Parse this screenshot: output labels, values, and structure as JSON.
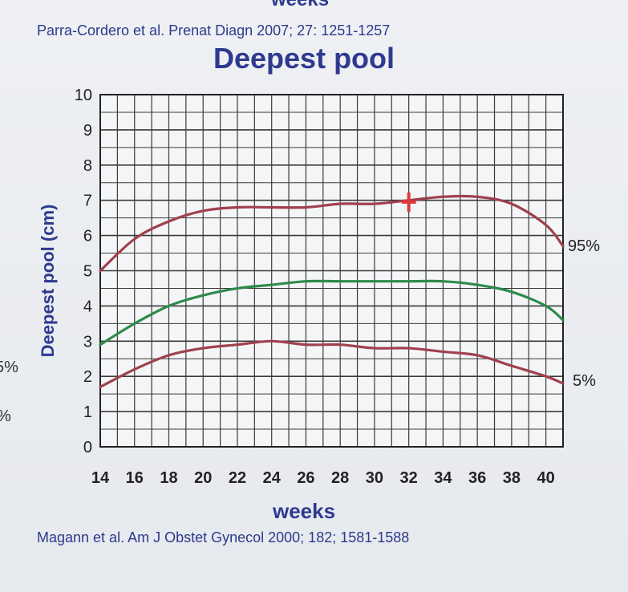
{
  "header": {
    "cut_off_text": "weeks",
    "reference_top": "Parra-Cordero et al. Prenat Diagn 2007; 27: 1251-1257"
  },
  "footer": {
    "reference_bottom": "Magann et al. Am J Obstet Gynecol 2000; 182; 1581-1588"
  },
  "edge_fragments": [
    "5%",
    "%"
  ],
  "chart_data": {
    "type": "line",
    "title": "Deepest pool",
    "xlabel": "weeks",
    "ylabel": "Deepest pool (cm)",
    "xlim": [
      14,
      41
    ],
    "ylim": [
      0,
      10
    ],
    "x_ticks": [
      14,
      16,
      18,
      20,
      22,
      24,
      26,
      28,
      30,
      32,
      34,
      36,
      38,
      40
    ],
    "y_ticks": [
      0,
      1,
      2,
      3,
      4,
      5,
      6,
      7,
      8,
      9,
      10
    ],
    "grid": true,
    "series": [
      {
        "name": "95%",
        "color": "#a0404e",
        "x": [
          14,
          16,
          18,
          20,
          22,
          24,
          26,
          28,
          30,
          32,
          34,
          36,
          38,
          40,
          41
        ],
        "values": [
          5.0,
          5.9,
          6.4,
          6.7,
          6.8,
          6.8,
          6.8,
          6.9,
          6.9,
          7.0,
          7.1,
          7.1,
          6.9,
          6.3,
          5.7
        ]
      },
      {
        "name": "",
        "color": "#2e8a4a",
        "x": [
          14,
          16,
          18,
          20,
          22,
          24,
          26,
          28,
          30,
          32,
          34,
          36,
          38,
          40,
          41
        ],
        "values": [
          2.9,
          3.5,
          4.0,
          4.3,
          4.5,
          4.6,
          4.7,
          4.7,
          4.7,
          4.7,
          4.7,
          4.6,
          4.4,
          4.0,
          3.6
        ]
      },
      {
        "name": "5%",
        "color": "#a0404e",
        "x": [
          14,
          16,
          18,
          20,
          22,
          24,
          26,
          28,
          30,
          32,
          34,
          36,
          38,
          40,
          41
        ],
        "values": [
          1.7,
          2.2,
          2.6,
          2.8,
          2.9,
          3.0,
          2.9,
          2.9,
          2.8,
          2.8,
          2.7,
          2.6,
          2.3,
          2.0,
          1.8
        ]
      }
    ],
    "marker": {
      "x": 32,
      "y": 6.95,
      "color": "#e0383a",
      "shape": "plus"
    }
  }
}
